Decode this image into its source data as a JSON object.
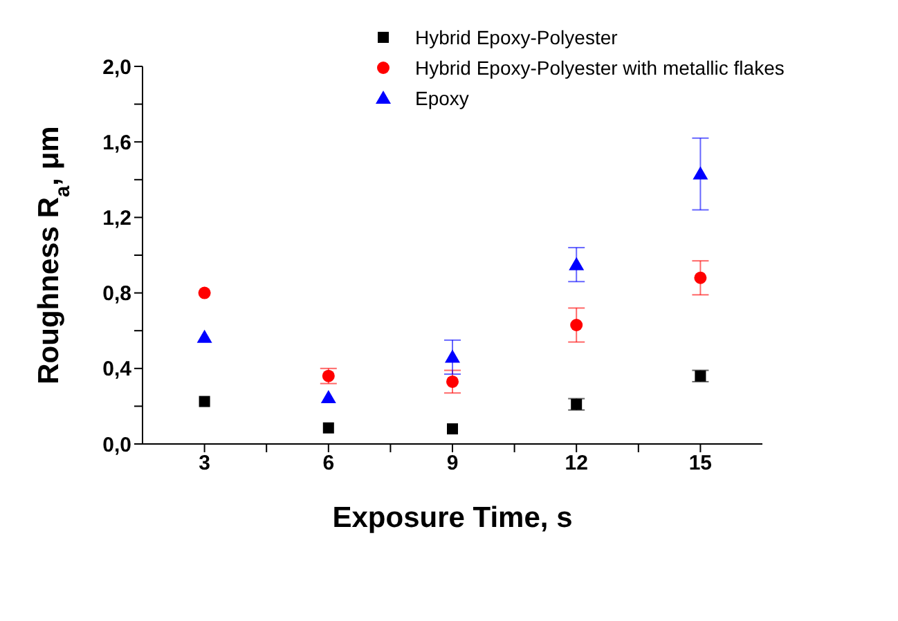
{
  "chart_data": {
    "type": "scatter",
    "xlabel": "Exposure Time, s",
    "ylabel": "Roughness R$_{a}$, μm",
    "x": [
      3,
      6,
      9,
      12,
      15
    ],
    "xlim": [
      1.5,
      16.5
    ],
    "xticks": [
      3,
      {
        "value": 4.5,
        "label": null
      },
      6,
      {
        "value": 7.5,
        "label": null
      },
      9,
      {
        "value": 10.5,
        "label": null
      },
      12,
      {
        "value": 13.5,
        "label": null
      },
      15
    ],
    "ylim": [
      0,
      2.0
    ],
    "yticks": [
      {
        "value": 0,
        "label": "0,0"
      },
      {
        "value": 0.2,
        "label": null
      },
      {
        "value": 0.4,
        "label": "0,4"
      },
      {
        "value": 0.6,
        "label": null
      },
      {
        "value": 0.8,
        "label": "0,8"
      },
      {
        "value": 1.0,
        "label": null
      },
      {
        "value": 1.2,
        "label": "1,2"
      },
      {
        "value": 1.4,
        "label": null
      },
      {
        "value": 1.6,
        "label": "1,6"
      },
      {
        "value": 1.8,
        "label": null
      },
      {
        "value": 2.0,
        "label": "2,0"
      }
    ],
    "grid": false,
    "legend": "top right",
    "series": [
      {
        "name": "Hybrid Epoxy-Polyester",
        "color": "#000000",
        "marker": "square",
        "values": [
          0.225,
          0.085,
          0.08,
          0.21,
          0.36
        ],
        "errors": [
          null,
          null,
          null,
          0.03,
          0.03
        ]
      },
      {
        "name": "Hybrid Epoxy-Polyester with metallic flakes",
        "color": "#ff0000",
        "marker": "circle",
        "values": [
          0.8,
          0.36,
          0.33,
          0.63,
          0.88
        ],
        "errors": [
          null,
          0.04,
          0.06,
          0.09,
          0.09
        ]
      },
      {
        "name": "Epoxy",
        "color": "#0000ff",
        "marker": "triangle",
        "values": [
          0.565,
          0.245,
          0.46,
          0.95,
          1.43
        ],
        "errors": [
          null,
          null,
          0.09,
          0.09,
          0.19
        ]
      }
    ]
  }
}
